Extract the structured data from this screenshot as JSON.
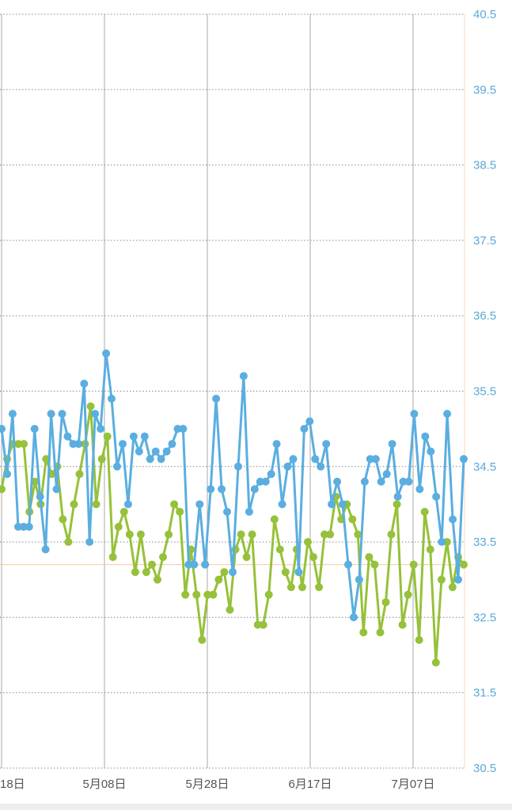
{
  "chart_data": {
    "type": "line",
    "y_ticks": [
      "40.5",
      "39.5",
      "38.5",
      "37.5",
      "36.5",
      "35.5",
      "34.5",
      "33.5",
      "32.5",
      "31.5",
      "30.5"
    ],
    "ylim": [
      30.5,
      40.5
    ],
    "x_ticks": [
      "18日",
      "5月08日",
      "5月28日",
      "6月17日",
      "7月07日"
    ],
    "grid": true,
    "reference_line": 33.2,
    "colors": {
      "series_blue": "#5aaee0",
      "series_green": "#96c13a",
      "axis_text": "#5aa9d8",
      "reference": "#f5c79a",
      "grid": "#888888"
    },
    "series": [
      {
        "values": [
          35.0,
          34.4,
          35.2,
          33.7,
          33.7,
          33.7,
          35.0,
          34.1,
          33.4,
          35.2,
          34.2,
          35.2,
          34.9,
          34.8,
          34.8,
          35.6,
          33.5,
          35.2,
          35.0,
          36.0,
          35.4,
          34.5,
          34.8,
          34.0,
          34.9,
          34.7,
          34.9,
          34.6,
          34.7,
          34.6,
          34.7,
          34.8,
          35.0,
          35.0,
          33.2,
          33.2,
          34.0,
          33.2,
          34.2,
          35.4,
          34.2,
          33.9,
          33.1,
          34.5,
          35.7,
          33.9,
          34.2,
          34.3,
          34.3,
          34.4,
          34.8,
          34.0,
          34.5,
          34.6,
          33.1,
          35.0,
          35.1,
          34.6,
          34.5,
          34.8,
          34.0,
          34.3,
          34.0,
          33.2,
          32.5,
          33.0,
          34.3,
          34.6,
          34.6,
          34.3,
          34.4,
          34.8,
          34.1,
          34.3,
          34.3,
          35.2,
          34.2,
          34.9,
          34.7,
          34.1,
          33.5,
          35.2,
          33.8,
          33.0,
          34.6
        ]
      },
      {
        "values": [
          34.2,
          34.6,
          34.8,
          34.8,
          34.8,
          33.9,
          34.3,
          34.0,
          34.6,
          34.4,
          34.5,
          33.8,
          33.5,
          34.0,
          34.4,
          34.8,
          35.3,
          34.0,
          34.6,
          34.9,
          33.3,
          33.7,
          33.9,
          33.6,
          33.1,
          33.6,
          33.1,
          33.2,
          33.0,
          33.3,
          33.6,
          34.0,
          33.9,
          32.8,
          33.4,
          32.8,
          32.2,
          32.8,
          32.8,
          33.0,
          33.1,
          32.6,
          33.4,
          33.6,
          33.3,
          33.6,
          32.4,
          32.4,
          32.8,
          33.8,
          33.4,
          33.1,
          32.9,
          33.4,
          32.9,
          33.5,
          33.3,
          32.9,
          33.6,
          33.6,
          34.1,
          33.8,
          34.0,
          33.8,
          33.6,
          32.3,
          33.3,
          33.2,
          32.3,
          32.7,
          33.6,
          34.0,
          32.4,
          32.8,
          33.2,
          32.2,
          33.9,
          33.4,
          31.9,
          33.0,
          33.5,
          32.9,
          33.3,
          33.2
        ]
      }
    ]
  }
}
